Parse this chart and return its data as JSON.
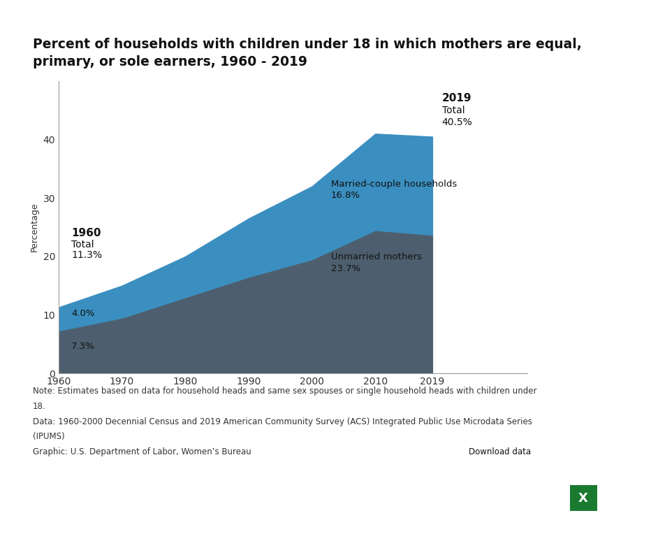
{
  "title": "Percent of households with children under 18 in which mothers are equal,\nprimary, or sole earners, 1960 - 2019",
  "ylabel": "Percentage",
  "years": [
    1960,
    1970,
    1980,
    1990,
    2000,
    2010,
    2019
  ],
  "unmarried_mothers": [
    7.3,
    9.5,
    13.0,
    16.5,
    19.5,
    24.5,
    23.7
  ],
  "married_couple": [
    4.0,
    5.5,
    7.0,
    10.0,
    12.5,
    16.5,
    16.8
  ],
  "color_unmarried": "#4d5f6e",
  "color_married": "#3b8fc0",
  "background_color": "#ffffff",
  "ylim": [
    0,
    50
  ],
  "yticks": [
    0,
    10,
    20,
    30,
    40
  ],
  "xlim_left": 1960,
  "xlim_right": 2034,
  "ann_1960_x": 1962,
  "ann_1960_year": "1960",
  "ann_1960_total": "Total",
  "ann_1960_total_val": "11.3%",
  "ann_1960_married_val": "4.0%",
  "ann_1960_unmarried_val": "7.3%",
  "ann_2019_x": 2020.5,
  "ann_2019_year": "2019",
  "ann_2019_total": "Total",
  "ann_2019_total_val": "40.5%",
  "ann_married_label": "Married-couple households",
  "ann_married_val": "16.8%",
  "ann_unmarried_label": "Unmarried mothers",
  "ann_unmarried_val": "23.7%",
  "note_line1": "Note: Estimates based on data for household heads and same sex spouses or single household heads with children under",
  "note_line2": "18.",
  "note_line3": "Data: 1960-2000 Decennial Census and 2019 American Community Survey (ACS) Integrated Public Use Microdata Series",
  "note_line4": "(IPUMS)",
  "note_line5": "Graphic: U.S. Department of Labor, Women’s Bureau",
  "download_text": "Download data",
  "title_fontsize": 13.5,
  "ylabel_fontsize": 9,
  "tick_fontsize": 10,
  "note_fontsize": 8.5,
  "ann_fontsize_large": 11,
  "ann_fontsize_med": 10,
  "ann_fontsize_small": 9.5
}
